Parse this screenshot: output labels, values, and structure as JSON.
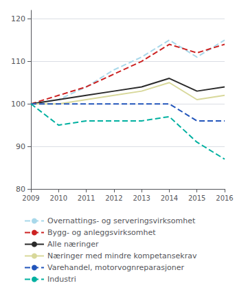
{
  "chart_data": {
    "type": "line",
    "x": [
      2009,
      2010,
      2011,
      2012,
      2013,
      2014,
      2015,
      2016
    ],
    "series": [
      {
        "name": "Overnattings- og serveringsvirksomhet",
        "color": "#a8d8ea",
        "line_style": "dashed",
        "values": [
          100,
          101,
          104,
          108,
          111,
          115,
          111,
          115
        ]
      },
      {
        "name": "Bygg- og anleggsvirksomhet",
        "color": "#cc2222",
        "line_style": "dashed",
        "values": [
          100,
          102,
          104,
          107,
          110,
          114,
          112,
          114
        ]
      },
      {
        "name": "Alle næringer",
        "color": "#2a2a2a",
        "line_style": "solid",
        "values": [
          100,
          101,
          102,
          103,
          104,
          106,
          103,
          104
        ]
      },
      {
        "name": "Næringer med mindre kompetansekrav",
        "color": "#d8d89a",
        "line_style": "solid",
        "values": [
          100,
          100,
          101,
          102,
          103,
          105,
          101,
          102
        ]
      },
      {
        "name": "Varehandel, motorvognreparasjoner",
        "color": "#2255bb",
        "line_style": "dashed",
        "values": [
          100,
          100,
          100,
          100,
          100,
          100,
          96,
          96
        ]
      },
      {
        "name": "Industri",
        "color": "#00b0a0",
        "line_style": "dashed",
        "values": [
          100,
          95,
          96,
          96,
          96,
          97,
          91,
          87
        ]
      }
    ],
    "xlim": [
      2009,
      2016
    ],
    "xticks": [
      2009,
      2010,
      2011,
      2012,
      2013,
      2014,
      2015,
      2016
    ],
    "ylim": [
      80,
      122
    ],
    "yticks": [
      80,
      90,
      100,
      110,
      120
    ],
    "grid": true,
    "legend": "bottom"
  }
}
